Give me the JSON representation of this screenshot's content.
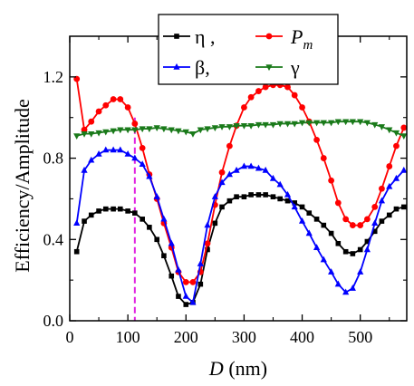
{
  "chart_data": {
    "type": "line",
    "xlabel_var": "D",
    "xlabel_unit": "(nm)",
    "ylabel": "Efficiency/Amplitude",
    "xlim": [
      0,
      580
    ],
    "ylim": [
      0,
      1.4
    ],
    "x_ticks": [
      "0",
      "100",
      "200",
      "300",
      "400",
      "500"
    ],
    "y_ticks": [
      "0.0",
      "0.4",
      "0.8",
      "1.2"
    ],
    "grid": false,
    "legend_position": "top-right",
    "vline": {
      "x": 112,
      "color": "#e020e0"
    },
    "series": [
      {
        "name": "η ,",
        "color": "#000000",
        "marker": "square",
        "points": [
          [
            12,
            0.34
          ],
          [
            25,
            0.49
          ],
          [
            37,
            0.52
          ],
          [
            50,
            0.54
          ],
          [
            62,
            0.55
          ],
          [
            75,
            0.55
          ],
          [
            87,
            0.55
          ],
          [
            100,
            0.54
          ],
          [
            112,
            0.53
          ],
          [
            125,
            0.5
          ],
          [
            137,
            0.46
          ],
          [
            150,
            0.4
          ],
          [
            162,
            0.32
          ],
          [
            175,
            0.22
          ],
          [
            187,
            0.12
          ],
          [
            200,
            0.08
          ],
          [
            212,
            0.09
          ],
          [
            225,
            0.18
          ],
          [
            237,
            0.35
          ],
          [
            250,
            0.48
          ],
          [
            262,
            0.56
          ],
          [
            275,
            0.59
          ],
          [
            287,
            0.61
          ],
          [
            300,
            0.61
          ],
          [
            312,
            0.62
          ],
          [
            325,
            0.62
          ],
          [
            337,
            0.62
          ],
          [
            350,
            0.61
          ],
          [
            362,
            0.6
          ],
          [
            375,
            0.59
          ],
          [
            387,
            0.58
          ],
          [
            400,
            0.56
          ],
          [
            412,
            0.53
          ],
          [
            425,
            0.5
          ],
          [
            437,
            0.47
          ],
          [
            450,
            0.43
          ],
          [
            462,
            0.38
          ],
          [
            475,
            0.34
          ],
          [
            487,
            0.33
          ],
          [
            500,
            0.35
          ],
          [
            512,
            0.39
          ],
          [
            525,
            0.44
          ],
          [
            537,
            0.49
          ],
          [
            550,
            0.52
          ],
          [
            562,
            0.55
          ],
          [
            575,
            0.56
          ]
        ]
      },
      {
        "name": "P",
        "name_sub": "m",
        "color": "#ff0000",
        "marker": "circle",
        "points": [
          [
            12,
            1.19
          ],
          [
            25,
            0.94
          ],
          [
            37,
            0.98
          ],
          [
            50,
            1.03
          ],
          [
            62,
            1.06
          ],
          [
            75,
            1.09
          ],
          [
            87,
            1.09
          ],
          [
            100,
            1.05
          ],
          [
            112,
            0.97
          ],
          [
            125,
            0.85
          ],
          [
            137,
            0.72
          ],
          [
            150,
            0.6
          ],
          [
            162,
            0.48
          ],
          [
            175,
            0.36
          ],
          [
            187,
            0.24
          ],
          [
            200,
            0.19
          ],
          [
            212,
            0.19
          ],
          [
            225,
            0.24
          ],
          [
            237,
            0.38
          ],
          [
            250,
            0.57
          ],
          [
            262,
            0.73
          ],
          [
            275,
            0.86
          ],
          [
            287,
            0.96
          ],
          [
            300,
            1.05
          ],
          [
            312,
            1.1
          ],
          [
            325,
            1.13
          ],
          [
            337,
            1.15
          ],
          [
            350,
            1.16
          ],
          [
            362,
            1.16
          ],
          [
            375,
            1.15
          ],
          [
            387,
            1.11
          ],
          [
            400,
            1.05
          ],
          [
            412,
            0.98
          ],
          [
            425,
            0.89
          ],
          [
            437,
            0.8
          ],
          [
            450,
            0.69
          ],
          [
            462,
            0.58
          ],
          [
            475,
            0.5
          ],
          [
            487,
            0.47
          ],
          [
            500,
            0.47
          ],
          [
            512,
            0.5
          ],
          [
            525,
            0.56
          ],
          [
            537,
            0.65
          ],
          [
            550,
            0.76
          ],
          [
            562,
            0.86
          ],
          [
            575,
            0.95
          ]
        ]
      },
      {
        "name": "β,",
        "color": "#0000ff",
        "marker": "triangle-up",
        "points": [
          [
            12,
            0.48
          ],
          [
            25,
            0.74
          ],
          [
            37,
            0.79
          ],
          [
            50,
            0.82
          ],
          [
            62,
            0.84
          ],
          [
            75,
            0.84
          ],
          [
            87,
            0.84
          ],
          [
            100,
            0.82
          ],
          [
            112,
            0.8
          ],
          [
            125,
            0.77
          ],
          [
            137,
            0.71
          ],
          [
            150,
            0.61
          ],
          [
            162,
            0.5
          ],
          [
            175,
            0.38
          ],
          [
            187,
            0.25
          ],
          [
            200,
            0.12
          ],
          [
            212,
            0.09
          ],
          [
            225,
            0.28
          ],
          [
            237,
            0.47
          ],
          [
            250,
            0.61
          ],
          [
            262,
            0.68
          ],
          [
            275,
            0.72
          ],
          [
            287,
            0.74
          ],
          [
            300,
            0.76
          ],
          [
            312,
            0.76
          ],
          [
            325,
            0.75
          ],
          [
            337,
            0.74
          ],
          [
            350,
            0.7
          ],
          [
            362,
            0.67
          ],
          [
            375,
            0.62
          ],
          [
            387,
            0.56
          ],
          [
            400,
            0.49
          ],
          [
            412,
            0.43
          ],
          [
            425,
            0.36
          ],
          [
            437,
            0.3
          ],
          [
            450,
            0.24
          ],
          [
            462,
            0.18
          ],
          [
            475,
            0.14
          ],
          [
            487,
            0.16
          ],
          [
            500,
            0.24
          ],
          [
            512,
            0.35
          ],
          [
            525,
            0.48
          ],
          [
            537,
            0.59
          ],
          [
            550,
            0.66
          ],
          [
            562,
            0.7
          ],
          [
            575,
            0.74
          ]
        ]
      },
      {
        "name": "γ",
        "color": "#1a7a1a",
        "marker": "triangle-down",
        "points": [
          [
            12,
            0.91
          ],
          [
            25,
            0.92
          ],
          [
            37,
            0.92
          ],
          [
            50,
            0.925
          ],
          [
            62,
            0.93
          ],
          [
            75,
            0.935
          ],
          [
            87,
            0.94
          ],
          [
            100,
            0.94
          ],
          [
            112,
            0.94
          ],
          [
            125,
            0.945
          ],
          [
            137,
            0.945
          ],
          [
            150,
            0.95
          ],
          [
            162,
            0.945
          ],
          [
            175,
            0.94
          ],
          [
            187,
            0.935
          ],
          [
            200,
            0.93
          ],
          [
            212,
            0.92
          ],
          [
            225,
            0.94
          ],
          [
            237,
            0.945
          ],
          [
            250,
            0.95
          ],
          [
            262,
            0.955
          ],
          [
            275,
            0.955
          ],
          [
            287,
            0.96
          ],
          [
            300,
            0.96
          ],
          [
            312,
            0.96
          ],
          [
            325,
            0.965
          ],
          [
            337,
            0.965
          ],
          [
            350,
            0.965
          ],
          [
            362,
            0.97
          ],
          [
            375,
            0.97
          ],
          [
            387,
            0.97
          ],
          [
            400,
            0.975
          ],
          [
            412,
            0.975
          ],
          [
            425,
            0.975
          ],
          [
            437,
            0.975
          ],
          [
            450,
            0.975
          ],
          [
            462,
            0.98
          ],
          [
            475,
            0.98
          ],
          [
            487,
            0.98
          ],
          [
            500,
            0.98
          ],
          [
            512,
            0.975
          ],
          [
            525,
            0.965
          ],
          [
            537,
            0.955
          ],
          [
            550,
            0.94
          ],
          [
            562,
            0.925
          ],
          [
            575,
            0.91
          ]
        ]
      }
    ]
  }
}
